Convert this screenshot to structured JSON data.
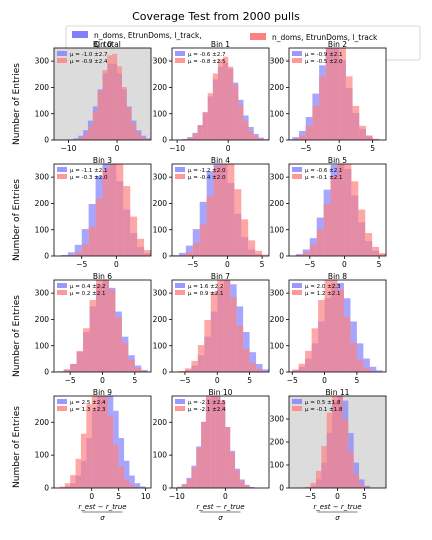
{
  "figure": {
    "title": "Coverage Test from 2000 pulls",
    "legend": {
      "entries": [
        {
          "label": "n_doms, EtrunDoms, l_track, Q_total",
          "color": "#8080ff"
        },
        {
          "label": "n_doms, EtrunDoms, l_track",
          "color": "#ff8080"
        }
      ]
    },
    "ylabel": "Number of Entries",
    "xlabel_num": "r_est − r_true",
    "xlabel_den": "σ"
  },
  "chart_data": [
    {
      "type": "bar",
      "title": "Bin 0",
      "greyed": true,
      "xlim": [
        -13,
        7
      ],
      "ylim": [
        0,
        350
      ],
      "xticks": [
        -10,
        0
      ],
      "yticks": [
        0,
        100,
        200,
        300
      ],
      "series": [
        {
          "name": "n_doms, EtrunDoms, l_track, Q_total",
          "mean": -1.0,
          "std": 2.7,
          "label": "μ = -1.0 ±2.7",
          "color": "#8080ff"
        },
        {
          "name": "n_doms, EtrunDoms, l_track",
          "mean": -0.9,
          "std": 2.4,
          "label": "μ = -0.9 ±2.4",
          "color": "#ff8080"
        }
      ]
    },
    {
      "type": "bar",
      "title": "Bin 1",
      "greyed": false,
      "xlim": [
        -11,
        8
      ],
      "ylim": [
        0,
        350
      ],
      "xticks": [
        -10,
        0
      ],
      "yticks": [
        0,
        100,
        200,
        300
      ],
      "series": [
        {
          "name": "n_doms, EtrunDoms, l_track, Q_total",
          "mean": -0.6,
          "std": 2.7,
          "label": "μ = -0.6 ±2.7",
          "color": "#8080ff"
        },
        {
          "name": "n_doms, EtrunDoms, l_track",
          "mean": -0.8,
          "std": 2.5,
          "label": "μ = -0.8 ±2.5",
          "color": "#ff8080"
        }
      ]
    },
    {
      "type": "bar",
      "title": "Bin 2",
      "greyed": false,
      "xlim": [
        -7.5,
        7
      ],
      "ylim": [
        0,
        350
      ],
      "xticks": [
        -5,
        0,
        5
      ],
      "yticks": [
        0,
        100,
        200,
        300
      ],
      "series": [
        {
          "name": "n_doms, EtrunDoms, l_track, Q_total",
          "mean": -0.9,
          "std": 2.1,
          "label": "μ = -0.9 ±2.1",
          "color": "#8080ff"
        },
        {
          "name": "n_doms, EtrunDoms, l_track",
          "mean": -0.5,
          "std": 2.0,
          "label": "μ = -0.5 ±2.0",
          "color": "#ff8080"
        }
      ]
    },
    {
      "type": "bar",
      "title": "Bin 3",
      "greyed": false,
      "xlim": [
        -9,
        5
      ],
      "ylim": [
        0,
        350
      ],
      "xticks": [
        -5,
        0
      ],
      "yticks": [
        0,
        100,
        200,
        300
      ],
      "series": [
        {
          "name": "n_doms, EtrunDoms, l_track, Q_total",
          "mean": -1.1,
          "std": 2.1,
          "label": "μ = -1.1 ±2.1",
          "color": "#8080ff"
        },
        {
          "name": "n_doms, EtrunDoms, l_track",
          "mean": -0.3,
          "std": 2.0,
          "label": "μ = -0.3 ±2.0",
          "color": "#ff8080"
        }
      ]
    },
    {
      "type": "bar",
      "title": "Bin 4",
      "greyed": false,
      "xlim": [
        -8,
        6
      ],
      "ylim": [
        0,
        350
      ],
      "xticks": [
        -5,
        0,
        5
      ],
      "yticks": [
        0,
        100,
        200,
        300
      ],
      "series": [
        {
          "name": "n_doms, EtrunDoms, l_track, Q_total",
          "mean": -1.2,
          "std": 2.0,
          "label": "μ = -1.2 ±2.0",
          "color": "#8080ff"
        },
        {
          "name": "n_doms, EtrunDoms, l_track",
          "mean": -0.4,
          "std": 2.0,
          "label": "μ = -0.4 ±2.0",
          "color": "#ff8080"
        }
      ]
    },
    {
      "type": "bar",
      "title": "Bin 5",
      "greyed": false,
      "xlim": [
        -8,
        6
      ],
      "ylim": [
        0,
        350
      ],
      "xticks": [
        -5,
        0,
        5
      ],
      "yticks": [
        0,
        100,
        200,
        300
      ],
      "series": [
        {
          "name": "n_doms, EtrunDoms, l_track, Q_total",
          "mean": -0.6,
          "std": 2.1,
          "label": "μ = -0.6 ±2.1",
          "color": "#8080ff"
        },
        {
          "name": "n_doms, EtrunDoms, l_track",
          "mean": -0.1,
          "std": 2.1,
          "label": "μ = -0.1 ±2.1",
          "color": "#ff8080"
        }
      ]
    },
    {
      "type": "bar",
      "title": "Bin 6",
      "greyed": false,
      "xlim": [
        -7.5,
        7.5
      ],
      "ylim": [
        0,
        350
      ],
      "xticks": [
        -5,
        0,
        5
      ],
      "yticks": [
        0,
        100,
        200,
        300
      ],
      "series": [
        {
          "name": "n_doms, EtrunDoms, l_track, Q_total",
          "mean": 0.4,
          "std": 2.2,
          "label": "μ = 0.4 ±2.2",
          "color": "#8080ff"
        },
        {
          "name": "n_doms, EtrunDoms, l_track",
          "mean": 0.2,
          "std": 2.1,
          "label": "μ = 0.2 ±2.1",
          "color": "#ff8080"
        }
      ]
    },
    {
      "type": "bar",
      "title": "Bin 7",
      "greyed": false,
      "xlim": [
        -7,
        8
      ],
      "ylim": [
        0,
        350
      ],
      "xticks": [
        -5,
        0,
        5
      ],
      "yticks": [
        0,
        100,
        200,
        300
      ],
      "series": [
        {
          "name": "n_doms, EtrunDoms, l_track, Q_total",
          "mean": 1.6,
          "std": 2.2,
          "label": "μ = 1.6 ±2.2",
          "color": "#8080ff"
        },
        {
          "name": "n_doms, EtrunDoms, l_track",
          "mean": 0.9,
          "std": 2.1,
          "label": "μ = 0.9 ±2.1",
          "color": "#ff8080"
        }
      ]
    },
    {
      "type": "bar",
      "title": "Bin 8",
      "greyed": false,
      "xlim": [
        -5.5,
        9.5
      ],
      "ylim": [
        0,
        350
      ],
      "xticks": [
        -5,
        0,
        5
      ],
      "yticks": [
        0,
        100,
        200,
        300
      ],
      "series": [
        {
          "name": "n_doms, EtrunDoms, l_track, Q_total",
          "mean": 2.0,
          "std": 2.3,
          "label": "μ = 2.0 ±2.3",
          "color": "#8080ff"
        },
        {
          "name": "n_doms, EtrunDoms, l_track",
          "mean": 1.2,
          "std": 2.1,
          "label": "μ = 1.2 ±2.1",
          "color": "#ff8080"
        }
      ]
    },
    {
      "type": "bar",
      "title": "Bin 9",
      "greyed": false,
      "xlim": [
        -7,
        11
      ],
      "ylim": [
        0,
        280
      ],
      "xticks": [
        0,
        5,
        10
      ],
      "yticks": [
        0,
        100,
        200
      ],
      "series": [
        {
          "name": "n_doms, EtrunDoms, l_track, Q_total",
          "mean": 2.5,
          "std": 2.4,
          "label": "μ = 2.5 ±2.4",
          "color": "#8080ff"
        },
        {
          "name": "n_doms, EtrunDoms, l_track",
          "mean": 1.3,
          "std": 2.3,
          "label": "μ = 1.3 ±2.3",
          "color": "#ff8080"
        }
      ]
    },
    {
      "type": "bar",
      "title": "Bin 10",
      "greyed": false,
      "xlim": [
        -11,
        9
      ],
      "ylim": [
        0,
        280
      ],
      "xticks": [
        -10,
        0
      ],
      "yticks": [
        0,
        100,
        200
      ],
      "series": [
        {
          "name": "n_doms, EtrunDoms, l_track, Q_total",
          "mean": -2.1,
          "std": 2.5,
          "label": "μ = -2.1 ±2.5",
          "color": "#8080ff"
        },
        {
          "name": "n_doms, EtrunDoms, l_track",
          "mean": -2.1,
          "std": 2.4,
          "label": "μ = -2.1 ±2.4",
          "color": "#ff8080"
        }
      ]
    },
    {
      "type": "bar",
      "title": "Bin 11",
      "greyed": true,
      "xlim": [
        -9,
        9
      ],
      "ylim": [
        0,
        400
      ],
      "xticks": [
        -5,
        0,
        5
      ],
      "yticks": [
        0,
        100,
        200,
        300
      ],
      "series": [
        {
          "name": "n_doms, EtrunDoms, l_track, Q_total",
          "mean": 0.5,
          "std": 1.8,
          "label": "μ = 0.5 ±1.8",
          "color": "#8080ff"
        },
        {
          "name": "n_doms, EtrunDoms, l_track",
          "mean": -0.1,
          "std": 1.8,
          "label": "μ = -0.1 ±1.8",
          "color": "#ff8080"
        }
      ]
    }
  ]
}
